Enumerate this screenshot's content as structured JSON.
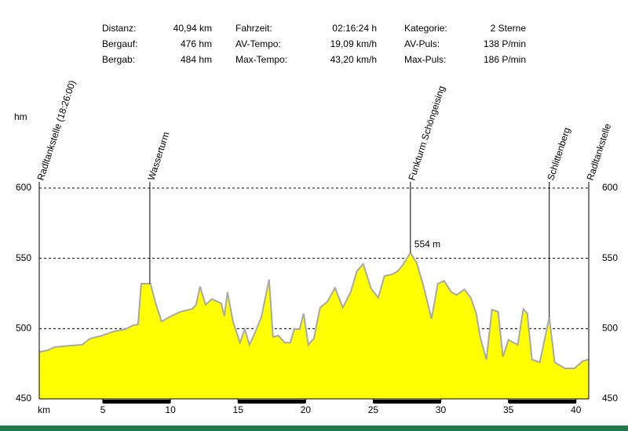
{
  "header": {
    "stats": [
      [
        "Distanz:",
        "40,94 km",
        "Fahrzeit:",
        "02:16:24 h",
        "Kategorie:",
        "2 Sterne"
      ],
      [
        "Bergauf:",
        "476 hm",
        "AV-Tempo:",
        "19,09 km/h",
        "AV-Puls:",
        "138 P/min"
      ],
      [
        "Bergab:",
        "484 hm",
        "Max-Tempo:",
        "43,20 km/h",
        "Max-Puls:",
        "186 P/min"
      ]
    ]
  },
  "chart_data": {
    "type": "area",
    "y_label": "hm",
    "x_label": "km",
    "x": [
      0.3,
      0.88,
      1.45,
      2.61,
      3.48,
      4.07,
      4.94,
      5.81,
      6.68,
      7.25,
      7.61,
      7.84,
      8.53,
      8.88,
      9.35,
      9.87,
      10.74,
      11.61,
      11.9,
      12.19,
      12.6,
      13.06,
      13.76,
      13.99,
      14.22,
      14.63,
      15.15,
      15.5,
      15.85,
      16.25,
      16.72,
      17.3,
      17.59,
      17.99,
      18.46,
      18.87,
      19.16,
      19.56,
      19.85,
      20.2,
      20.61,
      21.07,
      21.6,
      22.17,
      22.75,
      23.33,
      23.8,
      24.26,
      24.84,
      25.37,
      25.83,
      26.41,
      26.82,
      27.17,
      27.75,
      28.21,
      28.73,
      29.31,
      29.78,
      30.24,
      30.77,
      31.17,
      31.75,
      32.21,
      32.62,
      32.91,
      33.37,
      33.78,
      34.24,
      34.59,
      35,
      35.69,
      36.1,
      36.39,
      36.74,
      37.32,
      38.02,
      38.42,
      39.18,
      39.87,
      40.51,
      40.94
    ],
    "values": [
      483.4,
      484.5,
      486.8,
      487.9,
      488.5,
      493,
      495,
      498,
      499.6,
      502.4,
      503,
      532,
      532,
      519,
      505,
      508,
      512,
      514,
      517,
      530,
      517,
      521,
      518,
      509,
      526,
      505,
      490,
      499.6,
      488.5,
      497,
      508,
      535,
      494,
      495,
      490,
      490,
      499.6,
      499.6,
      510.8,
      488.5,
      493,
      515,
      519,
      529,
      515,
      526,
      541,
      546,
      528.6,
      522,
      537.5,
      538.6,
      541,
      545,
      554,
      547,
      530,
      507,
      532,
      534,
      526,
      524,
      528,
      522,
      510.8,
      494,
      478,
      513.5,
      512,
      480,
      492,
      488.5,
      514,
      510.8,
      478,
      476,
      508,
      476,
      471.7,
      471.7,
      477,
      478
    ],
    "color": "#ffff00",
    "line_color": "#a8a8a8",
    "xlim": [
      0.3,
      40.94
    ],
    "xticks": [
      5,
      10,
      15,
      20,
      25,
      30,
      35,
      40
    ],
    "ylim": [
      450,
      600
    ],
    "yticks": [
      450,
      500,
      550,
      600
    ],
    "y2lim": [
      450,
      600
    ],
    "y2ticks": [
      450,
      500,
      550,
      600
    ],
    "grid": true,
    "markers": [
      {
        "x": 0.3,
        "label": "Radltankstelle (18:26:00)"
      },
      {
        "x": 8.48,
        "label": "Wasserturm"
      },
      {
        "x": 27.75,
        "label": "Funkturm Schöngeising"
      },
      {
        "x": 38.02,
        "label": "Schlittenberg"
      },
      {
        "x": 40.94,
        "label": "Radltankstelle"
      }
    ],
    "annotation": {
      "x": 27.75,
      "value": 554,
      "label": "554 m",
      "color": "#c00000"
    }
  }
}
